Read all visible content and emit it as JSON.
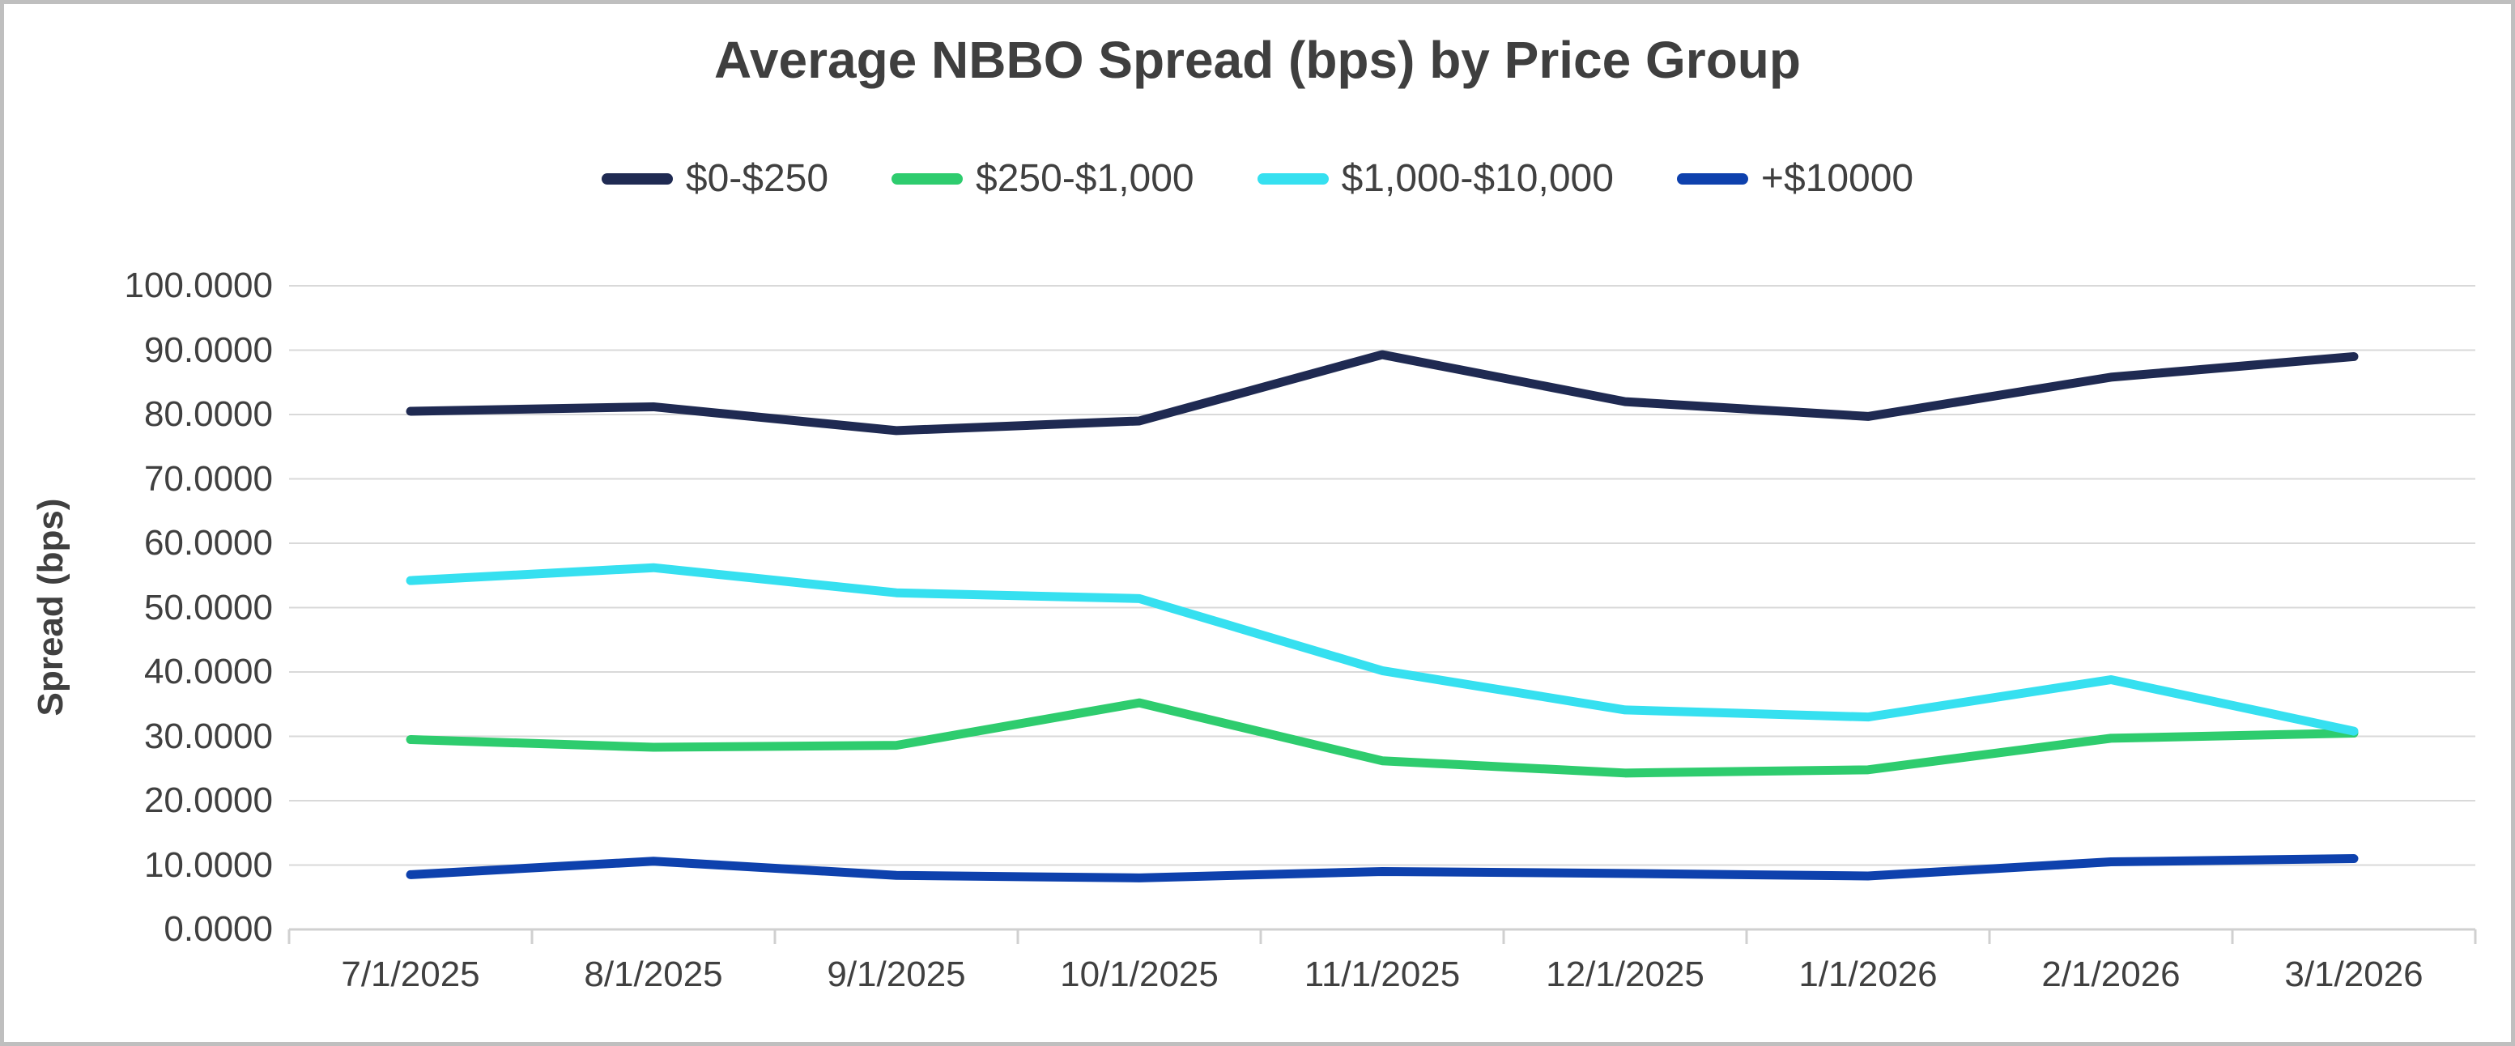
{
  "title": "Average NBBO Spread (bps) by Price Group",
  "colors": {
    "frame_border": "#BFBFBF",
    "gridline": "#D9D9D9",
    "axis_line": "#D0D0D0",
    "text": "#404040",
    "title_text": "#3F3F3F",
    "background": "#FFFFFF"
  },
  "chart_data": {
    "type": "line",
    "title": "Average NBBO Spread (bps) by Price Group",
    "xlabel": "",
    "ylabel": "Spread (bps)",
    "ylim": [
      0,
      100
    ],
    "y_tick_step": 10,
    "grid": true,
    "legend_position": "top-center",
    "y_ticks": [
      "100.0000",
      "90.0000",
      "80.0000",
      "70.0000",
      "60.0000",
      "50.0000",
      "40.0000",
      "30.0000",
      "20.0000",
      "10.0000",
      "0.0000"
    ],
    "categories": [
      "7/1/2025",
      "8/1/2025",
      "9/1/2025",
      "10/1/2025",
      "11/1/2025",
      "12/1/2025",
      "1/1/2026",
      "2/1/2026",
      "3/1/2026"
    ],
    "series": [
      {
        "name": "$0-$250",
        "color": "#1F2A52",
        "values": [
          80.5,
          81.2,
          77.5,
          79.0,
          89.3,
          82.0,
          79.7,
          85.8,
          89.0
        ]
      },
      {
        "name": "$250-$1,000",
        "color": "#2ECC6E",
        "values": [
          29.5,
          28.3,
          28.6,
          35.2,
          26.2,
          24.3,
          24.8,
          29.7,
          30.5
        ]
      },
      {
        "name": "$1,000-$10,000",
        "color": "#36E0F0",
        "values": [
          54.2,
          56.2,
          52.3,
          51.4,
          40.2,
          34.1,
          33.0,
          38.8,
          30.8
        ]
      },
      {
        "name": "+$10000",
        "color": "#0E41AD",
        "values": [
          8.5,
          10.6,
          8.4,
          8.0,
          9.0,
          8.7,
          8.3,
          10.5,
          11.0
        ]
      }
    ]
  }
}
